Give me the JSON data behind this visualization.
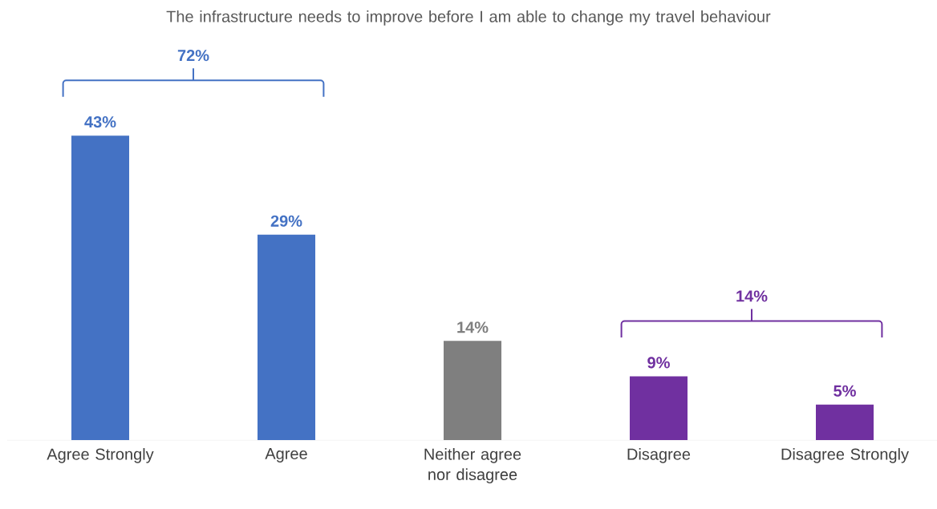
{
  "chart_data": {
    "type": "bar",
    "title": "The infrastructure needs to improve before I am able to change my travel behaviour",
    "categories": [
      "Agree Strongly",
      "Agree",
      "Neither agree nor disagree",
      "Disagree",
      "Disagree Strongly"
    ],
    "values": [
      43,
      29,
      14,
      9,
      5
    ],
    "colors": [
      "#4472c4",
      "#4472c4",
      "#7f7f7f",
      "#7030a0",
      "#7030a0"
    ],
    "value_labels": [
      "43%",
      "29%",
      "14%",
      "9%",
      "5%"
    ],
    "annotations": [
      "72%",
      "14%"
    ]
  }
}
